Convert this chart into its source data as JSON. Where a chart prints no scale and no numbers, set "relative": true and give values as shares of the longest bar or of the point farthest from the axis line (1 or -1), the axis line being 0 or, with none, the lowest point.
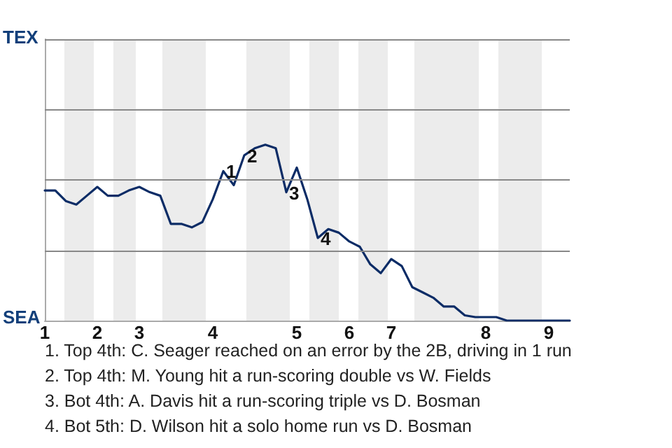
{
  "chart_data": {
    "type": "line",
    "relative": true,
    "categories": [
      "1",
      null,
      null,
      null,
      null,
      "2",
      null,
      null,
      null,
      "3",
      null,
      null,
      null,
      null,
      null,
      null,
      "4",
      null,
      null,
      null,
      null,
      null,
      null,
      null,
      "5",
      null,
      null,
      null,
      null,
      "6",
      null,
      null,
      null,
      "7",
      null,
      null,
      null,
      null,
      null,
      null,
      null,
      null,
      "8",
      null,
      null,
      null,
      null,
      null,
      "9",
      null,
      null
    ],
    "series": [
      {
        "color": "#0c2c66",
        "values": [
          0.74,
          0.74,
          0.68,
          0.66,
          0.71,
          0.76,
          0.71,
          0.71,
          0.74,
          0.76,
          0.73,
          0.71,
          0.55,
          0.55,
          0.53,
          0.56,
          0.69,
          0.85,
          0.77,
          0.94,
          0.98,
          1,
          0.98,
          0.73,
          0.87,
          0.69,
          0.47,
          0.52,
          0.5,
          0.45,
          0.42,
          0.32,
          0.27,
          0.35,
          0.31,
          0.19,
          0.16,
          0.13,
          0.08,
          0.08,
          0.03,
          0.02,
          0.02,
          0.02,
          0,
          0,
          0,
          0,
          0,
          0,
          0
        ]
      }
    ],
    "marker": "none",
    "ref_lines": [
      {
        "axis": "y",
        "value": 0.4,
        "color": "#888888"
      },
      {
        "axis": "y",
        "value": 0.8,
        "color": "#888888"
      },
      {
        "axis": "y",
        "value": 1.2,
        "color": "#888888"
      },
      {
        "axis": "y",
        "value": 1.6,
        "color": "#888888"
      }
    ],
    "annotations": [
      "TEX",
      "SEA",
      {
        "text": "1",
        "y": 0.85
      },
      {
        "text": "2",
        "y": 0.94
      },
      {
        "text": "3",
        "y": 0.73
      },
      {
        "text": "4",
        "y": 0.47
      },
      "1. Top 4th: C. Seager reached on an error by the 2B, driving in 1 run",
      "2. Top 4th: M. Young hit a run-scoring double vs W. Fields",
      "3. Bot 4th: A. Davis hit a run-scoring triple vs D. Bosman",
      "4. Bot 5th: D. Wilson hit a solo home run vs D. Bosman"
    ]
  }
}
